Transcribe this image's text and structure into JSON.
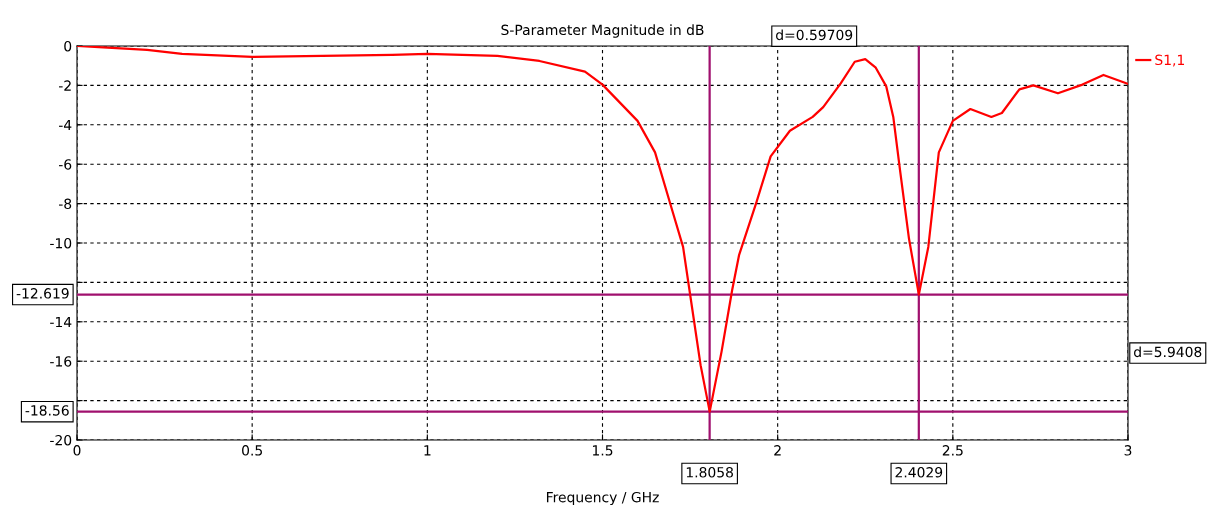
{
  "chart_data": {
    "type": "line",
    "title": "S-Parameter Magnitude in dB",
    "xlabel": "Frequency / GHz",
    "x": [
      0,
      0.1,
      0.2,
      0.3,
      0.5,
      0.7,
      0.9,
      1.0,
      1.1,
      1.2,
      1.32,
      1.45,
      1.5,
      1.6,
      1.65,
      1.7,
      1.73,
      1.75,
      1.78,
      1.806,
      1.84,
      1.87,
      1.89,
      1.94,
      1.98,
      2.035,
      2.1,
      2.13,
      2.18,
      2.22,
      2.25,
      2.28,
      2.31,
      2.33,
      2.35,
      2.375,
      2.403,
      2.43,
      2.46,
      2.5,
      2.55,
      2.61,
      2.64,
      2.69,
      2.73,
      2.8,
      2.87,
      2.93,
      3.0
    ],
    "series": [
      {
        "name": "S1,1",
        "color": "#ff0000",
        "values": [
          0,
          -0.1,
          -0.2,
          -0.4,
          -0.55,
          -0.5,
          -0.45,
          -0.4,
          -0.45,
          -0.5,
          -0.76,
          -1.3,
          -1.96,
          -3.8,
          -5.4,
          -8.4,
          -10.2,
          -12.6,
          -16.2,
          -18.56,
          -15.5,
          -12.4,
          -10.6,
          -7.9,
          -5.6,
          -4.3,
          -3.6,
          -3.1,
          -1.9,
          -0.8,
          -0.67,
          -1.1,
          -2.05,
          -3.6,
          -6.4,
          -9.8,
          -12.62,
          -10.2,
          -5.4,
          -3.8,
          -3.2,
          -3.6,
          -3.4,
          -2.2,
          -2.0,
          -2.4,
          -1.96,
          -1.47,
          -1.92
        ]
      }
    ],
    "xlim": [
      0,
      3
    ],
    "xticks": [
      0,
      0.5,
      1,
      1.5,
      2,
      2.5,
      3
    ],
    "ylim": [
      -20,
      0
    ],
    "yticks": [
      -20,
      {
        "value": -18,
        "label": null
      },
      -16,
      -14,
      {
        "value": -12,
        "label": null
      },
      -10,
      -8,
      -6,
      -4,
      -2,
      0
    ],
    "ref_lines": [
      {
        "axis": "x",
        "value": 1.8058,
        "label": "1.8058",
        "color": "#a0106e"
      },
      {
        "axis": "x",
        "value": 2.4029,
        "label": "2.4029",
        "color": "#a0106e"
      },
      {
        "axis": "y",
        "value": -12.619,
        "label": "-12.619",
        "color": "#a0106e"
      },
      {
        "axis": "y",
        "value": -18.56,
        "label": "-18.56",
        "color": "#a0106e"
      }
    ],
    "annotations": [
      "d=0.59709",
      "d=5.9408"
    ],
    "grid": true,
    "legend": "top right",
    "line_style": "solid",
    "marker": "none"
  }
}
